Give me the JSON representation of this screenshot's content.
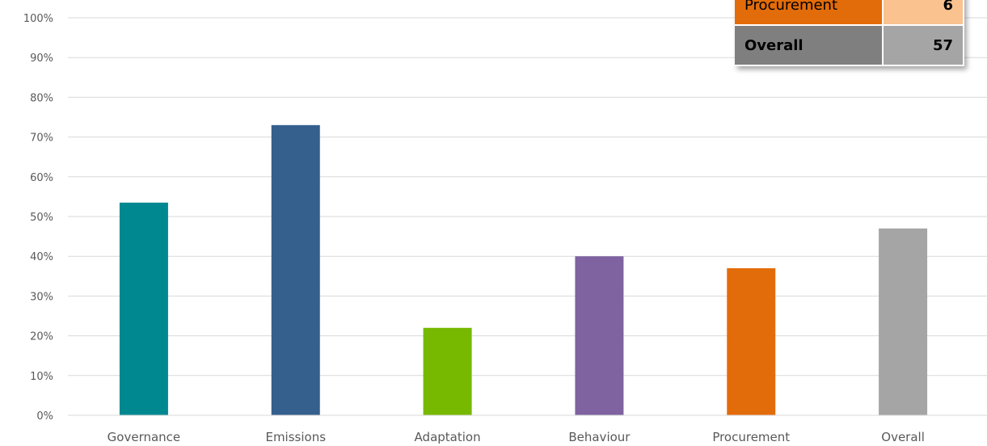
{
  "chart_data": {
    "type": "bar",
    "categories": [
      "Governance",
      "Emissions",
      "Adaptation",
      "Behaviour",
      "Procurement",
      "Overall"
    ],
    "values": [
      53.5,
      73,
      22,
      40,
      37,
      47
    ],
    "colors": [
      "#008890",
      "#355f8d",
      "#76b900",
      "#7f62a0",
      "#e36c0a",
      "#a5a5a5"
    ],
    "ylim": [
      0,
      100
    ],
    "yticks": [
      0,
      10,
      20,
      30,
      40,
      50,
      60,
      70,
      80,
      90,
      100
    ],
    "ytick_labels": [
      "0%",
      "10%",
      "20%",
      "30%",
      "40%",
      "50%",
      "60%",
      "70%",
      "80%",
      "90%",
      "100%"
    ],
    "grid": true,
    "legend": "none"
  },
  "score_table": {
    "rows": [
      {
        "label": "Procurement",
        "value": "6",
        "label_bg": "#e36c0a",
        "value_bg": "#f9c28f"
      },
      {
        "label": "Overall",
        "value": "57",
        "label_bg": "#7f7f7f",
        "value_bg": "#a5a5a5"
      }
    ]
  }
}
